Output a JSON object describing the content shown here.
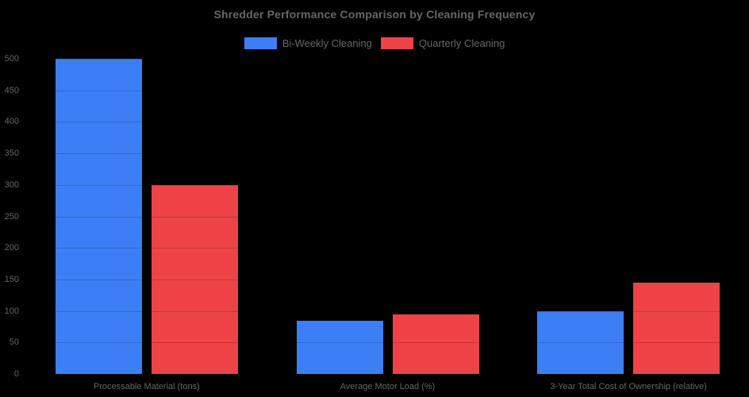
{
  "title": "Shredder Performance Comparison by Cleaning Frequency",
  "colors": {
    "background": "#000000",
    "text": "#666666",
    "biweekly_blue": "#3d7ef6",
    "quarterly_red": "#ee4347"
  },
  "chart_data": {
    "type": "bar",
    "title": "Shredder Performance Comparison by Cleaning Frequency",
    "categories": [
      "Processable Material (tons)",
      "Average Motor Load (%)",
      "3-Year Total Cost of Ownership (relative)"
    ],
    "series": [
      {
        "name": "Bi-Weekly Cleaning",
        "color": "#3d7ef6",
        "values": [
          500,
          85,
          100
        ]
      },
      {
        "name": "Quarterly Cleaning",
        "color": "#ee4347",
        "values": [
          300,
          95,
          145
        ]
      }
    ],
    "xlabel": "",
    "ylabel": "",
    "ylim": [
      0,
      500
    ],
    "ytick_step": 50,
    "yticks": [
      0,
      50,
      100,
      150,
      200,
      250,
      300,
      350,
      400,
      450,
      500
    ],
    "grid": "horizontal gridlines, faint, visible only across bars",
    "legend_position": "top-center",
    "legend": [
      "Bi-Weekly Cleaning",
      "Quarterly Cleaning"
    ]
  }
}
